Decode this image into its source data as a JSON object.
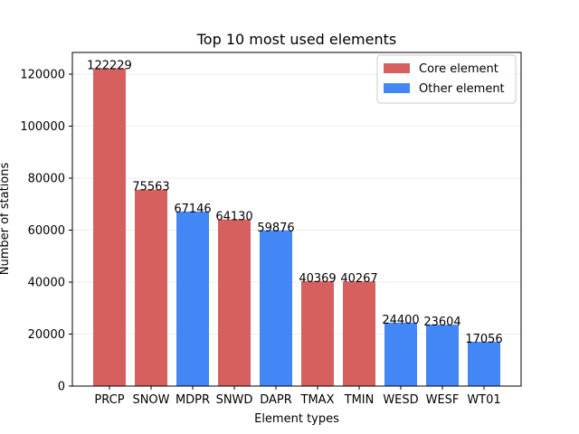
{
  "chart_data": {
    "type": "bar",
    "title": "Top 10 most used elements",
    "xlabel": "Element types",
    "ylabel": "Number of stations",
    "categories": [
      "PRCP",
      "SNOW",
      "MDPR",
      "SNWD",
      "DAPR",
      "TMAX",
      "TMIN",
      "WESD",
      "WESF",
      "WT01"
    ],
    "values": [
      122229,
      75563,
      67146,
      64130,
      59876,
      40369,
      40267,
      24400,
      23604,
      17056
    ],
    "groups": [
      "Core element",
      "Core element",
      "Other element",
      "Core element",
      "Other element",
      "Core element",
      "Core element",
      "Other element",
      "Other element",
      "Other element"
    ],
    "ylim": [
      0,
      128340
    ],
    "yticks": [
      0,
      20000,
      40000,
      60000,
      80000,
      100000,
      120000
    ],
    "grid": "horizontal",
    "legend": {
      "placement": "top-right",
      "entries": [
        {
          "label": "Core element",
          "color": "#d65f5f"
        },
        {
          "label": "Other element",
          "color": "#4287f5"
        }
      ]
    }
  }
}
